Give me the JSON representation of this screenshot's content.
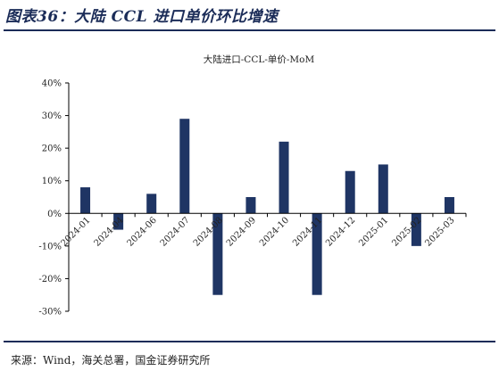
{
  "figure": {
    "title": "图表36：大陆 CCL 进口单价环比增速",
    "source": "来源：Wind，海关总署，国金证券研究所"
  },
  "chart_data": {
    "type": "bar",
    "title": "大陆进口-CCL-单价-MoM",
    "categories": [
      "2024-01",
      "2024-04",
      "2024-06",
      "2024-07",
      "2024-08",
      "2024-09",
      "2024-10",
      "2024-11",
      "2024-12",
      "2025-01",
      "2025-02",
      "2025-03"
    ],
    "series": [
      {
        "values": [
          8,
          -5,
          6,
          29,
          -25,
          5,
          22,
          -25,
          13,
          15,
          -10,
          5
        ]
      }
    ],
    "ylim": [
      -30,
      40
    ],
    "yticks": [
      -30,
      -20,
      -10,
      0,
      10,
      20,
      30,
      40
    ],
    "ytick_labels": [
      "-30%",
      "-20%",
      "-10%",
      "0%",
      "10%",
      "20%",
      "30%",
      "40%"
    ],
    "xlabel": "",
    "ylabel": "",
    "grid": false,
    "bar_color": "#1f3564"
  }
}
